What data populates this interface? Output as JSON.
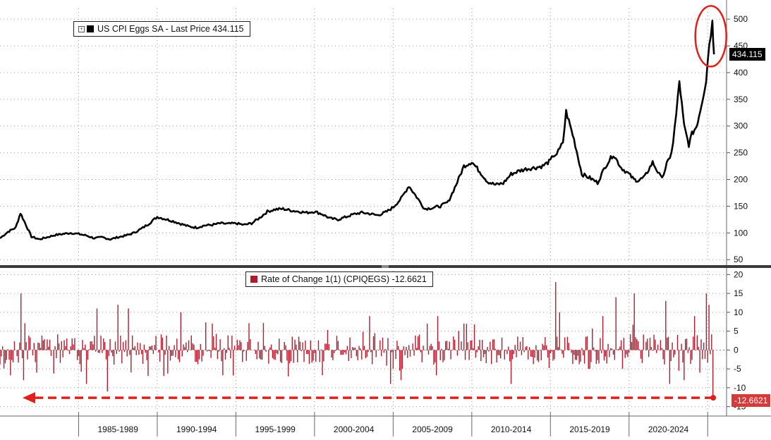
{
  "colors": {
    "price_line": "#000000",
    "roc_bar": "#b01c2e",
    "annotation": "#e0201a",
    "grid": "#9a9a9a",
    "last_price_tag_bg": "#000000",
    "roc_tag_bg": "#d63b3b"
  },
  "top_legend": {
    "icon": "expand-icon",
    "label": "US CPI Eggs SA - Last Price 434.115"
  },
  "bottom_legend": {
    "label": "Rate of Change 1(1) (CPIQEGS) -12.6621"
  },
  "last_price_tag": "434.115",
  "roc_tag": "-12.6621",
  "panel_divider_icon": "resize-handle-icon",
  "chart_data": [
    {
      "type": "line",
      "series": [
        {
          "name": "US CPI Eggs SA - Last Price"
        }
      ],
      "x": [
        1980.0,
        1980.5,
        1981.0,
        1981.3,
        1981.6,
        1982.0,
        1982.5,
        1983.0,
        1983.5,
        1984.0,
        1984.5,
        1985.0,
        1985.5,
        1986.0,
        1986.5,
        1987.0,
        1987.5,
        1988.0,
        1988.5,
        1989.0,
        1989.5,
        1990.0,
        1990.5,
        1991.0,
        1991.5,
        1992.0,
        1992.5,
        1993.0,
        1993.5,
        1994.0,
        1994.5,
        1995.0,
        1995.5,
        1996.0,
        1996.5,
        1997.0,
        1997.5,
        1998.0,
        1998.5,
        1999.0,
        1999.5,
        2000.0,
        2000.5,
        2001.0,
        2001.5,
        2002.0,
        2002.5,
        2003.0,
        2003.5,
        2004.0,
        2004.3,
        2004.6,
        2005.0,
        2005.5,
        2006.0,
        2006.5,
        2007.0,
        2007.5,
        2008.0,
        2008.5,
        2009.0,
        2009.5,
        2010.0,
        2010.5,
        2011.0,
        2011.5,
        2012.0,
        2012.5,
        2013.0,
        2013.5,
        2014.0,
        2014.5,
        2015.0,
        2015.2,
        2015.4,
        2015.6,
        2015.8,
        2016.0,
        2016.5,
        2017.0,
        2017.5,
        2018.0,
        2018.5,
        2019.0,
        2019.5,
        2020.0,
        2020.3,
        2020.6,
        2021.0,
        2021.5,
        2022.0,
        2022.2,
        2022.4,
        2022.6,
        2022.8,
        2023.0,
        2023.2,
        2023.5,
        2023.8,
        2024.0,
        2024.3,
        2024.6,
        2024.9,
        2025.1,
        2025.3,
        2025.4
      ],
      "y": [
        90,
        102,
        110,
        137,
        118,
        93,
        88,
        92,
        96,
        98,
        100,
        98,
        95,
        90,
        92,
        88,
        92,
        95,
        100,
        108,
        118,
        130,
        126,
        122,
        117,
        112,
        110,
        114,
        115,
        118,
        117,
        118,
        115,
        118,
        128,
        140,
        144,
        145,
        142,
        140,
        138,
        140,
        135,
        127,
        125,
        130,
        135,
        138,
        136,
        133,
        136,
        140,
        148,
        164,
        188,
        167,
        145,
        147,
        150,
        158,
        190,
        225,
        233,
        215,
        196,
        190,
        193,
        210,
        216,
        220,
        222,
        225,
        235,
        245,
        248,
        257,
        270,
        327,
        275,
        210,
        203,
        194,
        225,
        247,
        222,
        210,
        200,
        198,
        205,
        232,
        205,
        210,
        230,
        238,
        270,
        322,
        383,
        300,
        265,
        285,
        300,
        340,
        385,
        455,
        494,
        434.115
      ],
      "ylim": [
        45,
        520
      ],
      "xlim": [
        1980.0,
        2026.2
      ],
      "yticks": [
        50,
        100,
        150,
        200,
        250,
        300,
        350,
        400,
        450,
        500
      ],
      "last_value": 434.115
    },
    {
      "type": "bar",
      "series": [
        {
          "name": "Rate of Change 1(1) (CPIQEGS)"
        }
      ],
      "ylim": [
        -16,
        21
      ],
      "yticks": [
        -15,
        -10,
        -5,
        0,
        5,
        10,
        15,
        20
      ],
      "last_value": -12.6621,
      "xticks_labels": [
        "1985-1989",
        "1990-1994",
        "1995-1999",
        "2000-2004",
        "2005-2009",
        "2010-2014",
        "2015-2019",
        "2020-2024"
      ],
      "spike_months": {
        "1981.0": 12,
        "1981.3": 15,
        "1981.5": -8,
        "1982.0": -12,
        "1982.3": -6,
        "1985.5": -9,
        "1986.2": 11,
        "1986.8": -11,
        "1987.5": 12,
        "1988.2": 11,
        "1990.0": -8,
        "1991.5": 10,
        "1993.0": -6,
        "1993.5": 7,
        "1996.0": 7,
        "1997.0": -6,
        "1998.0": 11,
        "1998.3": -7,
        "2001.0": -5,
        "2003.5": 9,
        "2004.0": 8,
        "2004.8": -9,
        "2005.5": -8,
        "2007.2": 7,
        "2007.8": 9,
        "2009.0": -7,
        "2009.5": 7,
        "2012.0": 8,
        "2012.5": -9,
        "2015.3": 18,
        "2015.6": 10,
        "2016.0": -6,
        "2017.5": -5,
        "2018.3": 9,
        "2019.2": 14,
        "2019.6": -5,
        "2020.3": 15,
        "2021.0": 8,
        "2022.3": 13,
        "2022.6": -9,
        "2023.0": -10,
        "2023.5": -8,
        "2024.2": 9,
        "2024.5": -6,
        "2024.9": 15,
        "2025.1": 12,
        "2025.4": -12.6621
      }
    }
  ],
  "x_axis": {
    "labels": [
      "1985-1989",
      "1990-1994",
      "1995-1999",
      "2000-2004",
      "2005-2009",
      "2010-2014",
      "2015-2019",
      "2020-2024"
    ],
    "label_centers": [
      1987.5,
      1992.5,
      1997.5,
      2002.5,
      2007.5,
      2012.5,
      2017.5,
      2022.5
    ],
    "boundaries": [
      1985,
      1990,
      1995,
      2000,
      2005,
      2010,
      2015,
      2020,
      2025
    ]
  }
}
